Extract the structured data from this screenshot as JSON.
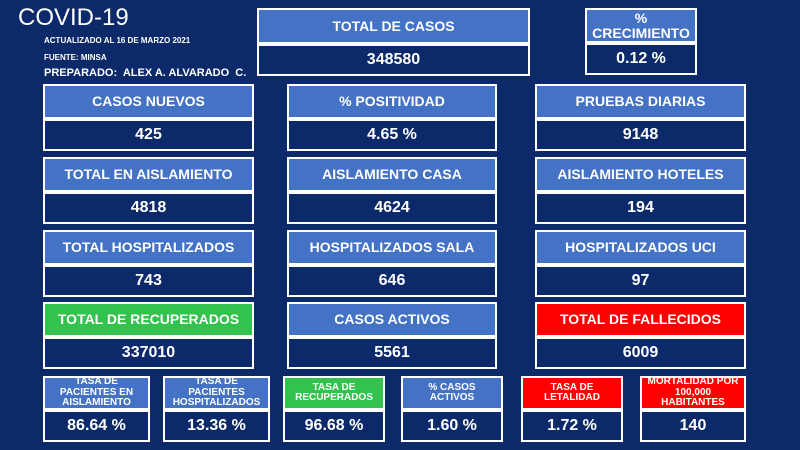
{
  "header": {
    "title": "COVID-19",
    "updated": "ACTUALIZADO AL 16 DE MARZO 2021",
    "source": "FUENTE: MINSA",
    "prepared": "PREPARADO:  ALEX A. ALVARADO  C."
  },
  "cards": [
    {
      "label": "TOTAL DE CASOS",
      "value": "348580"
    },
    {
      "label": "% CRECIMIENTO",
      "value": "0.12 %"
    },
    {
      "label": "CASOS NUEVOS",
      "value": "425"
    },
    {
      "label": "% POSITIVIDAD",
      "value": "4.65 %"
    },
    {
      "label": "PRUEBAS DIARIAS",
      "value": "9148"
    },
    {
      "label": "TOTAL EN AISLAMIENTO",
      "value": "4818"
    },
    {
      "label": "AISLAMIENTO CASA",
      "value": "4624"
    },
    {
      "label": "AISLAMIENTO HOTELES",
      "value": "194"
    },
    {
      "label": "TOTAL HOSPITALIZADOS",
      "value": "743"
    },
    {
      "label": "HOSPITALIZADOS SALA",
      "value": "646"
    },
    {
      "label": "HOSPITALIZADOS UCI",
      "value": "97"
    },
    {
      "label": "TOTAL DE RECUPERADOS",
      "value": "337010"
    },
    {
      "label": "CASOS ACTIVOS",
      "value": "5561"
    },
    {
      "label": "TOTAL DE FALLECIDOS",
      "value": "6009"
    },
    {
      "label": "TASA DE PACIENTES EN AISLAMIENTO",
      "value": "86.64 %"
    },
    {
      "label": "TASA DE PACIENTES HOSPITALIZADOS",
      "value": "13.36 %"
    },
    {
      "label": "TASA DE RECUPERADOS",
      "value": "96.68 %"
    },
    {
      "label": "% CASOS ACTIVOS",
      "value": "1.60 %"
    },
    {
      "label": "TASA DE LETALIDAD",
      "value": "1.72 %"
    },
    {
      "label": "MORTALIDAD POR 100,000 HABITANTES",
      "value": "140"
    }
  ]
}
